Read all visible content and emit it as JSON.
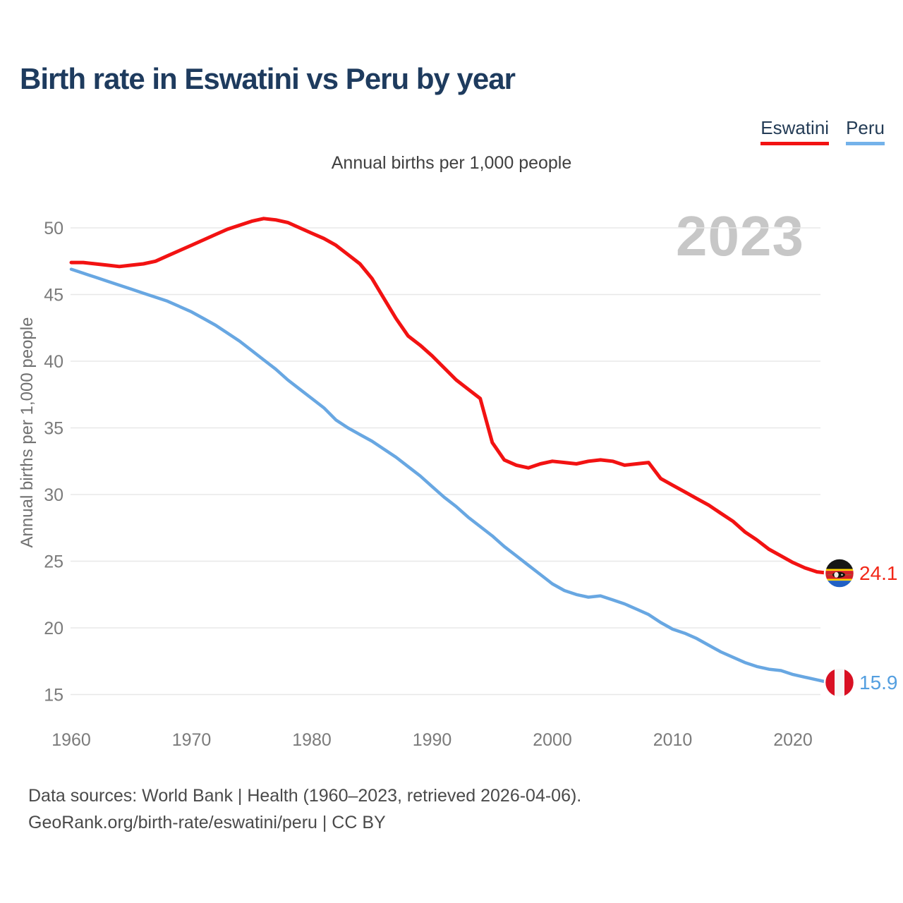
{
  "title": "Birth rate in Eswatini vs Peru by year",
  "subtitle": "Annual births per 1,000 people",
  "watermark_year": "2023",
  "legend": {
    "items": [
      {
        "id": "eswatini",
        "label": "Eswatini",
        "underline_color": "#f21212"
      },
      {
        "id": "peru",
        "label": "Peru",
        "underline_color": "#74b2ea"
      }
    ]
  },
  "footer": {
    "sources_line": "Data sources: World Bank | Health (1960–2023, retrieved 2026-04-06).",
    "attribution_line": "GeoRank.org/birth-rate/eswatini/peru | CC BY"
  },
  "chart_data": {
    "type": "line",
    "title": "Birth rate in Eswatini vs Peru by year",
    "subtitle": "Annual births per 1,000 people",
    "xlabel": "",
    "ylabel": "Annual births per 1,000 people",
    "grid": "horizontal",
    "legend_position": "top-right",
    "x_range": [
      1960,
      2023
    ],
    "ylim": [
      13.5,
      52.5
    ],
    "xticks": [
      1960,
      1970,
      1980,
      1990,
      2000,
      2010,
      2020
    ],
    "yticks": [
      15,
      20,
      25,
      30,
      35,
      40,
      45,
      50
    ],
    "x": [
      1960,
      1961,
      1962,
      1963,
      1964,
      1965,
      1966,
      1967,
      1968,
      1969,
      1970,
      1971,
      1972,
      1973,
      1974,
      1975,
      1976,
      1977,
      1978,
      1979,
      1980,
      1981,
      1982,
      1983,
      1984,
      1985,
      1986,
      1987,
      1988,
      1989,
      1990,
      1991,
      1992,
      1993,
      1994,
      1995,
      1996,
      1997,
      1998,
      1999,
      2000,
      2001,
      2002,
      2003,
      2004,
      2005,
      2006,
      2007,
      2008,
      2009,
      2010,
      2011,
      2012,
      2013,
      2014,
      2015,
      2016,
      2017,
      2018,
      2019,
      2020,
      2021,
      2022,
      2023
    ],
    "series": [
      {
        "name": "Eswatini",
        "color": "#f21212",
        "label_color": "#f22718",
        "end_label": "24.1",
        "end_value": 24.1,
        "flag": "eswatini",
        "values": [
          47.4,
          47.4,
          47.3,
          47.2,
          47.1,
          47.2,
          47.3,
          47.5,
          47.9,
          48.3,
          48.7,
          49.1,
          49.5,
          49.9,
          50.2,
          50.5,
          50.7,
          50.6,
          50.4,
          50.0,
          49.6,
          49.2,
          48.7,
          48.0,
          47.3,
          46.2,
          44.7,
          43.2,
          41.9,
          41.2,
          40.4,
          39.5,
          38.6,
          37.9,
          37.2,
          33.9,
          32.6,
          32.2,
          32.0,
          32.3,
          32.5,
          32.4,
          32.3,
          32.5,
          32.6,
          32.5,
          32.2,
          32.3,
          32.4,
          31.2,
          30.7,
          30.2,
          29.7,
          29.2,
          28.6,
          28.0,
          27.2,
          26.6,
          25.9,
          25.4,
          24.9,
          24.5,
          24.2,
          24.1
        ]
      },
      {
        "name": "Peru",
        "color": "#68a7e2",
        "label_color": "#549fe0",
        "end_label": "15.9",
        "end_value": 15.9,
        "flag": "peru",
        "values": [
          46.9,
          46.6,
          46.3,
          46.0,
          45.7,
          45.4,
          45.1,
          44.8,
          44.5,
          44.1,
          43.7,
          43.2,
          42.7,
          42.1,
          41.5,
          40.8,
          40.1,
          39.4,
          38.6,
          37.9,
          37.2,
          36.5,
          35.6,
          35.0,
          34.5,
          34.0,
          33.4,
          32.8,
          32.1,
          31.4,
          30.6,
          29.8,
          29.1,
          28.3,
          27.6,
          26.9,
          26.1,
          25.4,
          24.7,
          24.0,
          23.3,
          22.8,
          22.5,
          22.3,
          22.4,
          22.1,
          21.8,
          21.4,
          21.0,
          20.4,
          19.9,
          19.6,
          19.2,
          18.7,
          18.2,
          17.8,
          17.4,
          17.1,
          16.9,
          16.8,
          16.5,
          16.3,
          16.1,
          15.9
        ]
      }
    ]
  }
}
